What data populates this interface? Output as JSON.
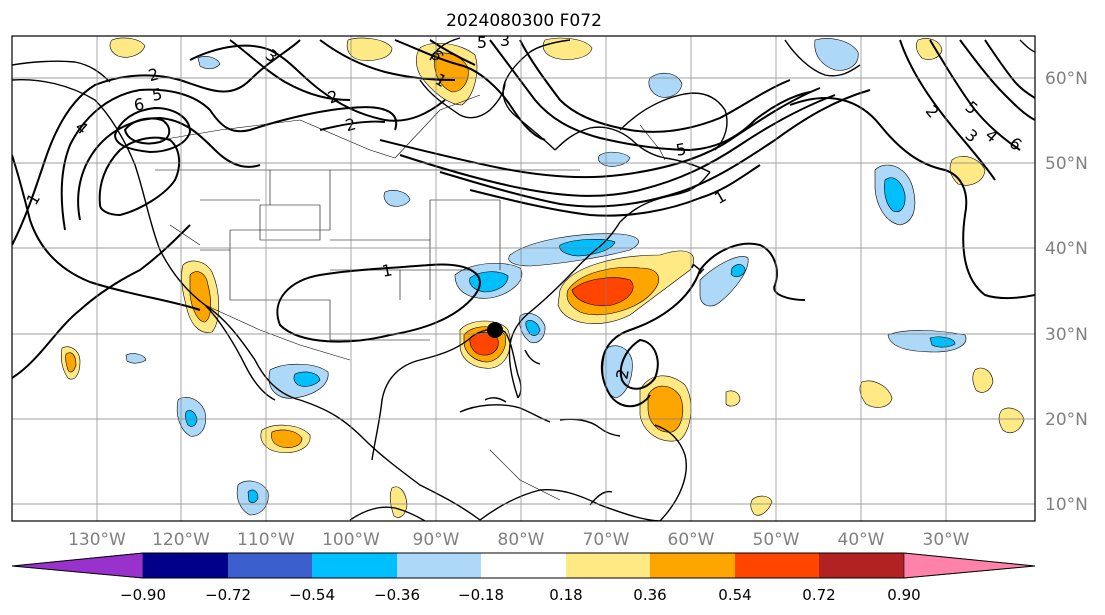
{
  "title": "2024080300 F072",
  "longitude_labels": [
    "130°W",
    "120°W",
    "110°W",
    "100°W",
    "90°W",
    "80°W",
    "70°W",
    "60°W",
    "50°W",
    "40°W",
    "30°W"
  ],
  "latitude_labels": [
    "60°N",
    "50°N",
    "40°N",
    "30°N",
    "20°N",
    "10°N"
  ],
  "contour_labels": [
    "2",
    "6",
    "5",
    "4",
    "1",
    "3",
    "2",
    "1",
    "1",
    "1",
    "6",
    "5",
    "3",
    "2",
    "1",
    "6",
    "5",
    "4",
    "3",
    "2",
    "5",
    "2"
  ],
  "colorbar": {
    "tick_labels": [
      "−0.90",
      "−0.72",
      "−0.54",
      "−0.36",
      "−0.18",
      "0.18",
      "0.36",
      "0.54",
      "0.72",
      "0.90"
    ],
    "colors": [
      "#9932cc",
      "#00008b",
      "#3a5fcd",
      "#00bfff",
      "#add8f7",
      "#ffffff",
      "#ffe985",
      "#ffa500",
      "#ff4500",
      "#b22222",
      "#ff82ab"
    ]
  },
  "marker": "storm-center"
}
